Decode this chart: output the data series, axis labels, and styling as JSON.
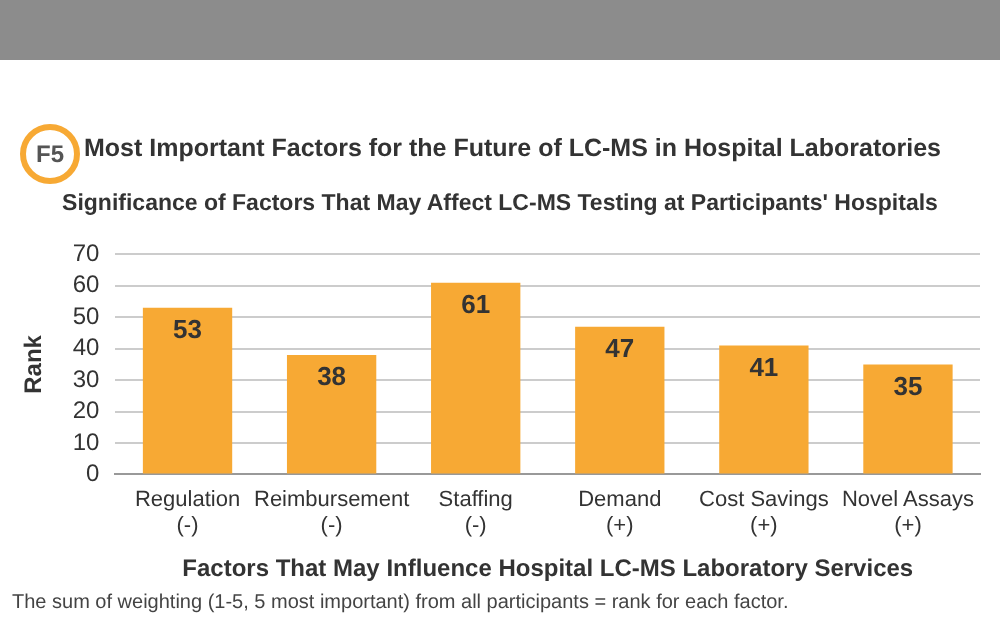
{
  "chart_data": {
    "type": "bar",
    "title": "Most Important Factors for the Future of LC-MS in Hospital Laboratories",
    "subtitle": "Significance of Factors That May Affect LC-MS Testing at Participants' Hospitals",
    "xlabel": "Factors That May Influence Hospital LC-MS Laboratory Services",
    "ylabel": "Rank",
    "categories": [
      "Regulation (-)",
      "Reimbursement (-)",
      "Staffing (-)",
      "Demand (+)",
      "Cost Savings (+)",
      "Novel Assays (+)"
    ],
    "values": [
      53,
      38,
      61,
      47,
      41,
      35
    ],
    "color": "#f7a934",
    "data_labels": true,
    "ylim": [
      0,
      70
    ],
    "yticks": [
      0,
      10,
      20,
      30,
      40,
      50,
      60,
      70
    ],
    "grid": "y",
    "legend": false,
    "annotations": [
      "F5",
      "The sum of weighting (1-5, 5 most important) from all participants = rank for each factor."
    ]
  }
}
